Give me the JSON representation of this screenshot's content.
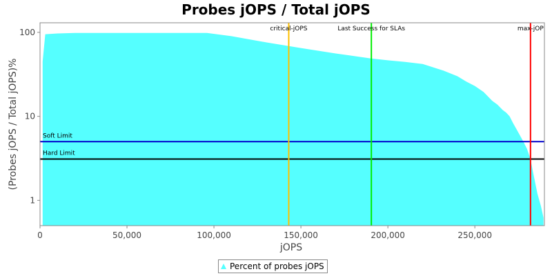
{
  "chart_data": {
    "type": "area",
    "title": "Probes jOPS / Total jOPS",
    "xlabel": "jOPS",
    "ylabel": "(Probes jOPS / Total jOPS)%",
    "xlim": [
      0,
      290000
    ],
    "ylim": [
      0.5,
      130
    ],
    "y_scale": "log",
    "x_ticks": [
      0,
      50000,
      100000,
      150000,
      200000,
      250000
    ],
    "x_tick_labels": [
      "0",
      "50,000",
      "100,000",
      "150,000",
      "200,000",
      "250,000"
    ],
    "y_ticks": [
      1,
      10,
      100
    ],
    "y_tick_labels": [
      "1",
      "10",
      "100"
    ],
    "grid": false,
    "legend": "bottom",
    "series": [
      {
        "name": "Percent of probes jOPS",
        "color": "#55ffff",
        "x": [
          1500,
          3000,
          10000,
          20000,
          50000,
          96000,
          110000,
          130000,
          150000,
          170000,
          190000,
          200000,
          210000,
          220000,
          225000,
          232000,
          240000,
          245000,
          250000,
          255000,
          260000,
          263000,
          266000,
          268000,
          270000,
          272000,
          274000,
          276000,
          278000,
          280000,
          282000,
          284000,
          286000,
          288000,
          289500
        ],
        "y": [
          45,
          95,
          97,
          98.5,
          98.5,
          98.5,
          90,
          76,
          65,
          56,
          49,
          46.5,
          44.5,
          42,
          39,
          35,
          30,
          26,
          23,
          19.5,
          15.3,
          13.8,
          11.9,
          11.1,
          10,
          8.3,
          7,
          5.9,
          4.95,
          4.1,
          3.1,
          1.9,
          1.2,
          0.85,
          0.62
        ]
      }
    ],
    "markers": [
      {
        "label": "critical-jOPS",
        "x": 143000,
        "color": "#ffc000"
      },
      {
        "label": "Last Success for SLAs",
        "x": 190500,
        "color": "#00ee00"
      },
      {
        "label": "max-jOP",
        "x": 282000,
        "color": "#ff0000"
      }
    ],
    "limits": [
      {
        "label": "Soft Limit",
        "y": 5,
        "color": "#0000cc"
      },
      {
        "label": "Hard Limit",
        "y": 3.1,
        "color": "#000000"
      }
    ]
  }
}
